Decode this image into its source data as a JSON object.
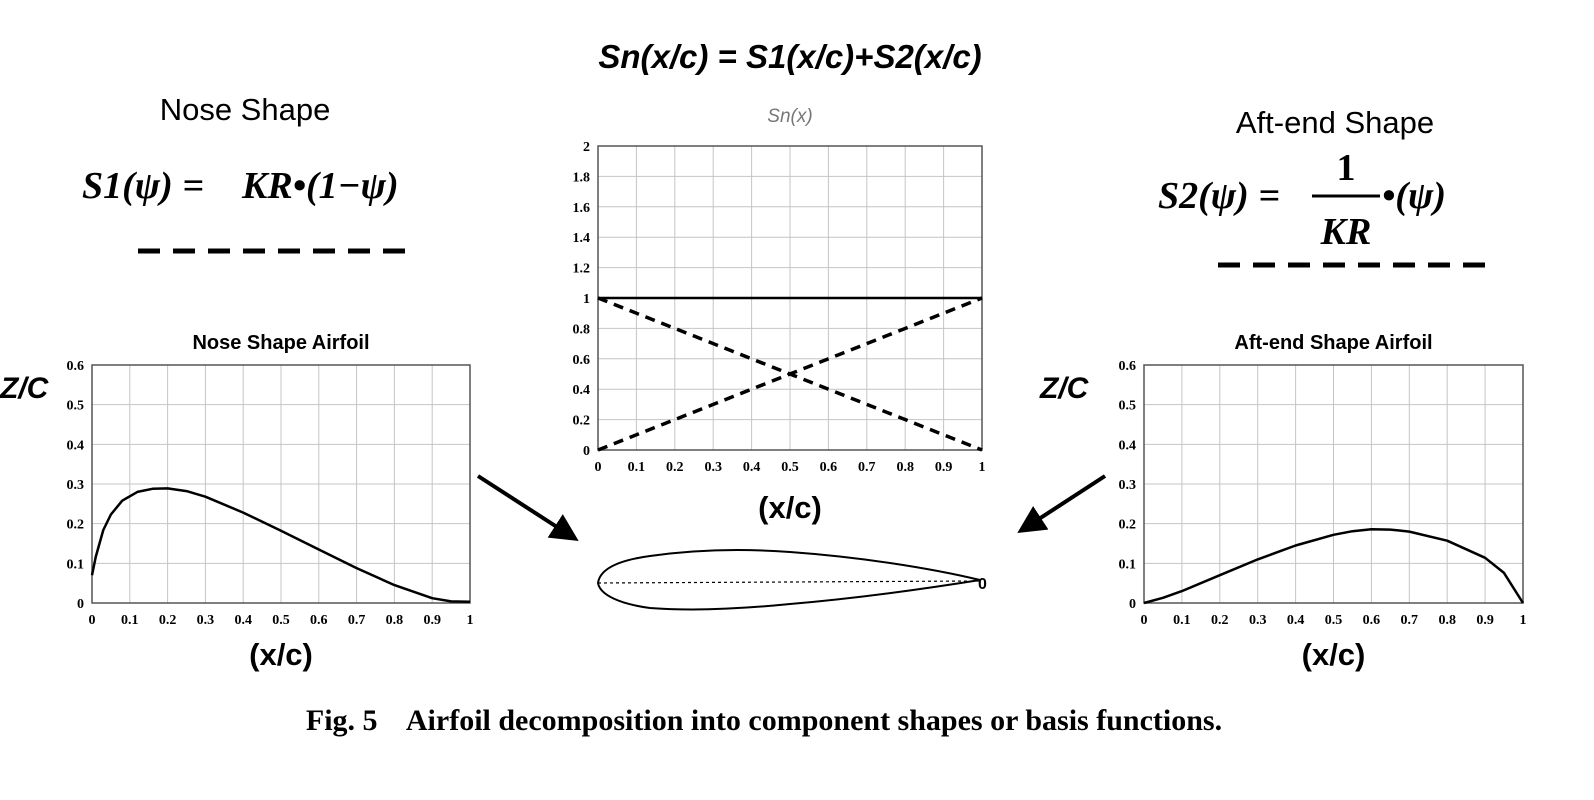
{
  "header": {
    "equation": "Sn(x/c) = S1(x/c)+S2(x/c)"
  },
  "left_panel": {
    "label": "Nose Shape",
    "formula": {
      "lhs": "S1(ψ) = ",
      "rhs": "KR•(1−ψ)"
    }
  },
  "right_panel": {
    "label": "Aft-end Shape",
    "formula": {
      "lhs": "S2(ψ) = ",
      "numerator": "1",
      "denominator": "KR",
      "rhs": "•(ψ)"
    }
  },
  "caption": {
    "text": "Fig. 5    Airfoil decomposition into component shapes or basis functions."
  },
  "airfoil_sketch": {
    "te_label": "0"
  },
  "chart_data": [
    {
      "id": "sn",
      "type": "line",
      "title": "Sn(x)",
      "xlabel": "(x/c)",
      "ylabel": "",
      "xlim": [
        0,
        1
      ],
      "ylim": [
        0,
        2
      ],
      "grid": true,
      "xticks": [
        "0",
        "0.1",
        "0.2",
        "0.3",
        "0.4",
        "0.5",
        "0.6",
        "0.7",
        "0.8",
        "0.9",
        "1"
      ],
      "yticks": [
        "0",
        "0.2",
        "0.4",
        "0.6",
        "0.8",
        "1",
        "1.2",
        "1.4",
        "1.6",
        "1.8",
        "2"
      ],
      "series": [
        {
          "style": "solid",
          "x": [
            0,
            1
          ],
          "y": [
            1,
            1
          ]
        },
        {
          "style": "dashed",
          "x": [
            0,
            1
          ],
          "y": [
            1,
            0
          ]
        },
        {
          "style": "dashed",
          "x": [
            0,
            1
          ],
          "y": [
            0,
            1
          ]
        }
      ]
    },
    {
      "id": "nose",
      "type": "line",
      "title": "Nose Shape Airfoil",
      "xlabel": "(x/c)",
      "ylabel": "Z/C",
      "xlim": [
        0,
        1
      ],
      "ylim": [
        0,
        0.6
      ],
      "grid": true,
      "xticks": [
        "0",
        "0.1",
        "0.2",
        "0.3",
        "0.4",
        "0.5",
        "0.6",
        "0.7",
        "0.8",
        "0.9",
        "1"
      ],
      "yticks": [
        "0",
        "0.1",
        "0.2",
        "0.3",
        "0.4",
        "0.5",
        "0.6"
      ],
      "series": [
        {
          "style": "solid",
          "x": [
            0,
            0.01,
            0.03,
            0.05,
            0.08,
            0.12,
            0.16,
            0.2,
            0.25,
            0.3,
            0.4,
            0.5,
            0.6,
            0.7,
            0.8,
            0.9,
            0.95,
            1.0
          ],
          "y": [
            0.07,
            0.117,
            0.184,
            0.223,
            0.258,
            0.28,
            0.288,
            0.289,
            0.282,
            0.268,
            0.228,
            0.182,
            0.135,
            0.088,
            0.045,
            0.012,
            0.004,
            0.003
          ]
        }
      ]
    },
    {
      "id": "aft",
      "type": "line",
      "title": "Aft-end Shape Airfoil",
      "xlabel": "(x/c)",
      "ylabel": "Z/C",
      "xlim": [
        0,
        1
      ],
      "ylim": [
        0,
        0.6
      ],
      "grid": true,
      "xticks": [
        "0",
        "0.1",
        "0.2",
        "0.3",
        "0.4",
        "0.5",
        "0.6",
        "0.7",
        "0.8",
        "0.9",
        "1"
      ],
      "yticks": [
        "0",
        "0.1",
        "0.2",
        "0.3",
        "0.4",
        "0.5",
        "0.6"
      ],
      "series": [
        {
          "style": "solid",
          "x": [
            0,
            0.05,
            0.1,
            0.2,
            0.3,
            0.4,
            0.5,
            0.55,
            0.6,
            0.65,
            0.7,
            0.8,
            0.9,
            0.95,
            1.0
          ],
          "y": [
            0.0,
            0.013,
            0.03,
            0.07,
            0.11,
            0.145,
            0.172,
            0.181,
            0.186,
            0.185,
            0.18,
            0.157,
            0.114,
            0.076,
            0.0
          ]
        }
      ]
    }
  ]
}
